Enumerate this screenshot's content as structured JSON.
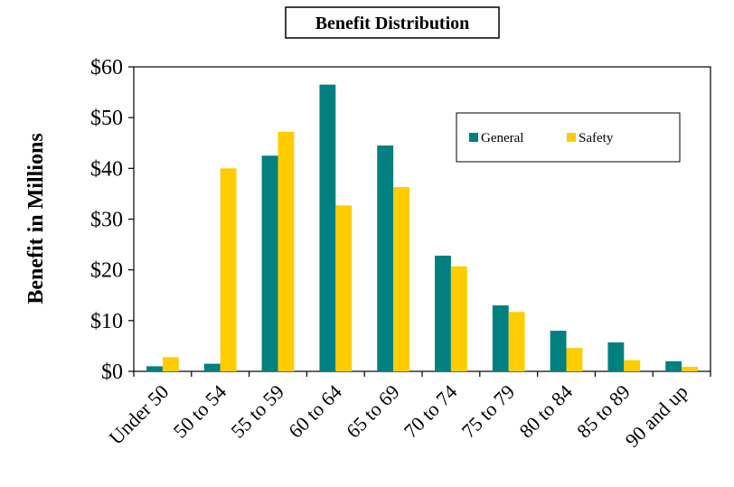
{
  "chart_data": {
    "type": "bar",
    "title": "Benefit Distribution",
    "xlabel": "",
    "ylabel": "Benefit in Millions",
    "ylim": [
      0,
      60
    ],
    "yticks": [
      "$0",
      "$10",
      "$20",
      "$30",
      "$40",
      "$50",
      "$60"
    ],
    "categories": [
      "Under 50",
      "50 to 54",
      "55 to 59",
      "60 to 64",
      "65 to 69",
      "70 to 74",
      "75 to 79",
      "80 to 84",
      "85 to 89",
      "90 and up"
    ],
    "series": [
      {
        "name": "General",
        "color": "#008080",
        "values": [
          1.0,
          1.5,
          42.5,
          56.5,
          44.5,
          22.8,
          13.0,
          8.0,
          5.7,
          2.0
        ]
      },
      {
        "name": "Safety",
        "color": "#FFCC00",
        "values": [
          2.8,
          40.0,
          47.2,
          32.7,
          36.3,
          20.7,
          11.7,
          4.6,
          2.2,
          0.9
        ]
      }
    ],
    "legend": "inside-top-right",
    "grid": false
  }
}
